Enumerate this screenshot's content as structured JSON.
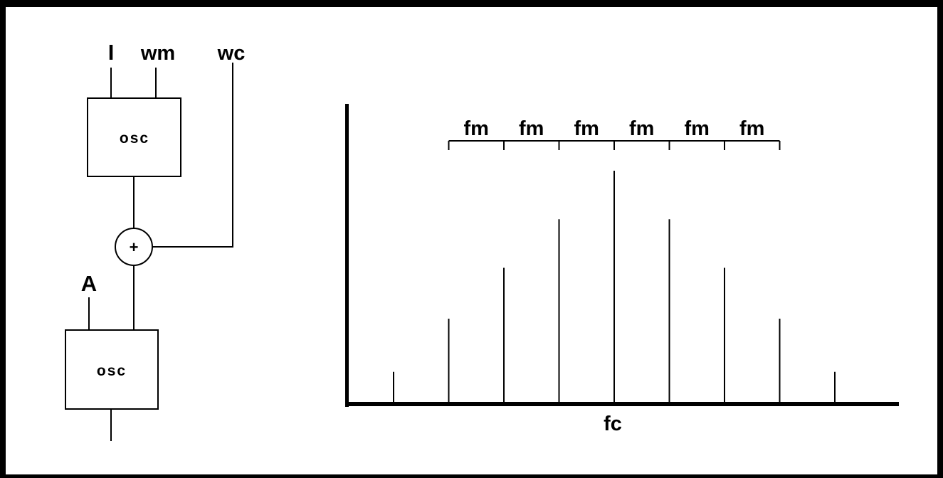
{
  "diagram": {
    "inputs": {
      "index": "I",
      "modulator_freq": "wm",
      "carrier_freq": "wc",
      "amplitude": "A"
    },
    "oscillators": {
      "modulator": "osc",
      "carrier": "osc"
    },
    "adder_symbol": "+"
  },
  "spectrum": {
    "center_label": "fc",
    "spacing_labels": [
      "fm",
      "fm",
      "fm",
      "fm",
      "fm",
      "fm"
    ],
    "lines": [
      {
        "order": -4,
        "amplitude": 0.13
      },
      {
        "order": -3,
        "amplitude": 0.36
      },
      {
        "order": -2,
        "amplitude": 0.58
      },
      {
        "order": -1,
        "amplitude": 0.79
      },
      {
        "order": 0,
        "amplitude": 1.0
      },
      {
        "order": 1,
        "amplitude": 0.79
      },
      {
        "order": 2,
        "amplitude": 0.58
      },
      {
        "order": 3,
        "amplitude": 0.36
      },
      {
        "order": 4,
        "amplitude": 0.13
      }
    ]
  }
}
